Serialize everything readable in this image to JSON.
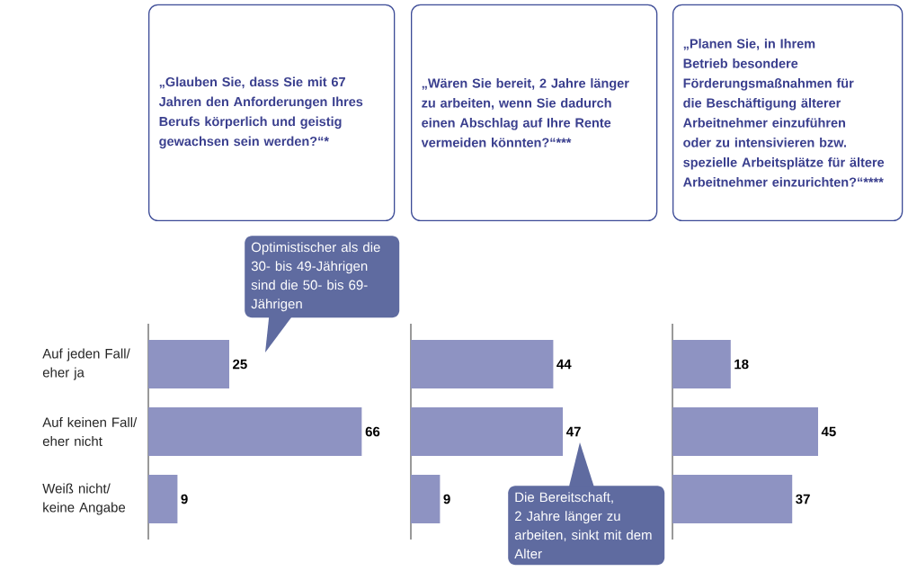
{
  "chart_data": [
    {
      "type": "bar",
      "orientation": "horizontal",
      "title": "„Glauben Sie, dass Sie mit 67 Jahren den Anforderungen Ihres Berufs körperlich und geistig gewachsen sein werden?“*",
      "categories": [
        "Auf jeden Fall/ eher ja",
        "Auf keinen Fall/ eher nicht",
        "Weiß nicht/ keine Angabe"
      ],
      "values": [
        25,
        66,
        9
      ],
      "color": "#8e93c2",
      "data_labels": true,
      "tick_labels": "y",
      "annotations": [
        "Optimistischer als die 30- bis 49-Jährigen sind die 50- bis 69-Jährigen"
      ]
    },
    {
      "type": "bar",
      "orientation": "horizontal",
      "title": "„Wären Sie bereit, 2 Jahre länger zu arbeiten, wenn Sie dadurch einen Abschlag auf Ihre Rente vermeiden könnten?“***",
      "categories": [
        null,
        null,
        null
      ],
      "values": [
        44,
        47,
        9
      ],
      "color": "#8e93c2",
      "data_labels": true,
      "tick_labels": false,
      "annotations": [
        "Die Bereitschaft, 2 Jahre länger zu arbeiten, sinkt mit dem Alter"
      ]
    },
    {
      "type": "bar",
      "orientation": "horizontal",
      "title": "„Planen Sie, in Ihrem Betrieb besondere Förderungsmaßnahmen für die Beschäftigung älterer Arbeitnehmer einzuführen oder zu intensivieren bzw. spezielle Arbeitsplätze für ältere Arbeitnehmer einzurichten?“****",
      "categories": [
        null,
        null,
        null
      ],
      "values": [
        18,
        45,
        37
      ],
      "color": "#8e93c2",
      "data_labels": true,
      "tick_labels": false
    }
  ]
}
